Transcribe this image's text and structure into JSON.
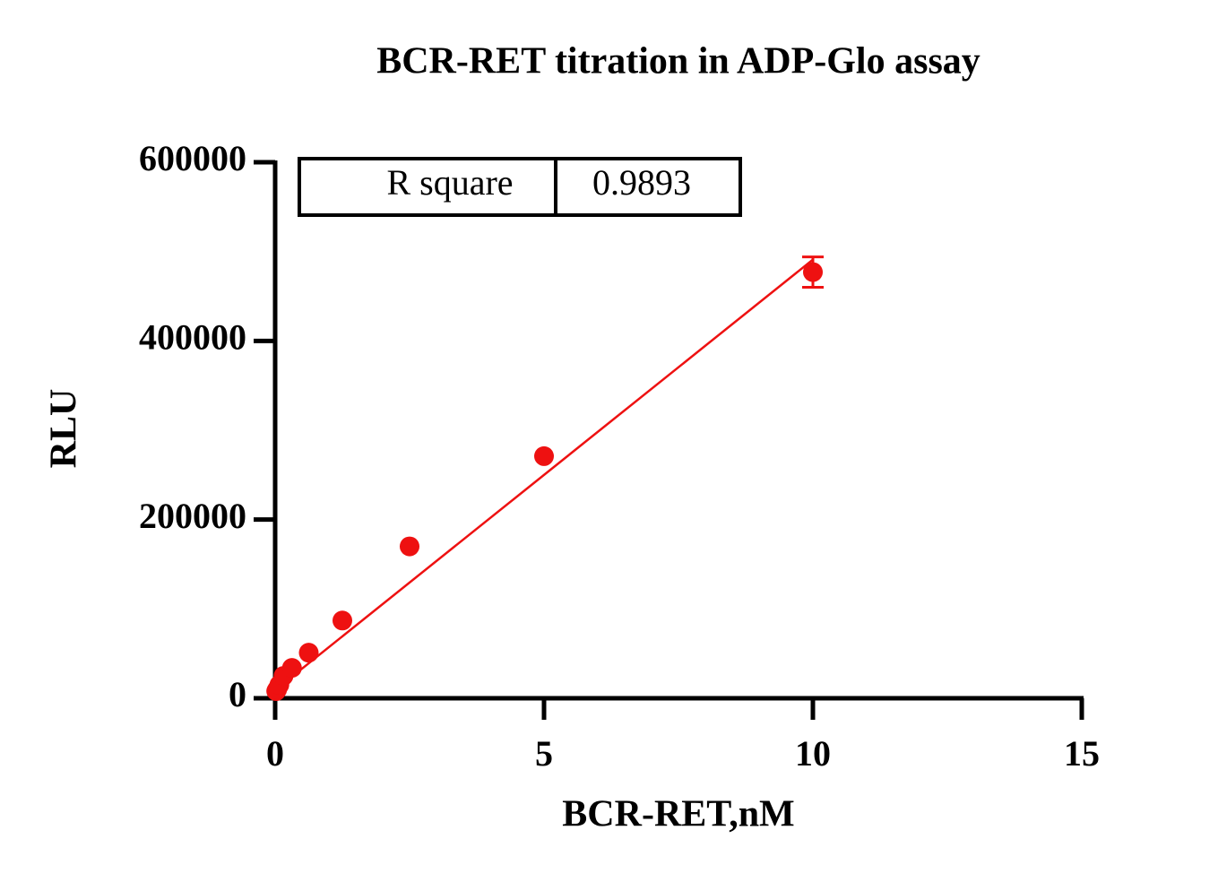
{
  "chart_data": {
    "type": "scatter",
    "title": "BCR-RET titration in  ADP-Glo assay",
    "x_label": "BCR-RET,nM",
    "y_label": "RLU",
    "x": [
      0.0195,
      0.039,
      0.078,
      0.156,
      0.3125,
      0.625,
      1.25,
      2.5,
      5,
      10
    ],
    "series": [
      {
        "color": "#ee1111",
        "values": [
          8000,
          10000,
          15000,
          25000,
          34000,
          51000,
          87000,
          170000,
          271000,
          477000
        ],
        "errors": [
          null,
          null,
          null,
          null,
          null,
          null,
          null,
          null,
          null,
          17000
        ]
      }
    ],
    "fit_line": {
      "color": "#ee1111",
      "x": [
        0.0195,
        10
      ],
      "values": [
        10000,
        491000
      ]
    },
    "stats_table": {
      "label": "R square",
      "value": 0.9893
    },
    "xlim": [
      0,
      15
    ],
    "ylim": [
      0,
      600000
    ],
    "xticks": [
      0,
      5,
      10,
      15
    ],
    "yticks": [
      0,
      200000,
      400000,
      600000
    ]
  }
}
